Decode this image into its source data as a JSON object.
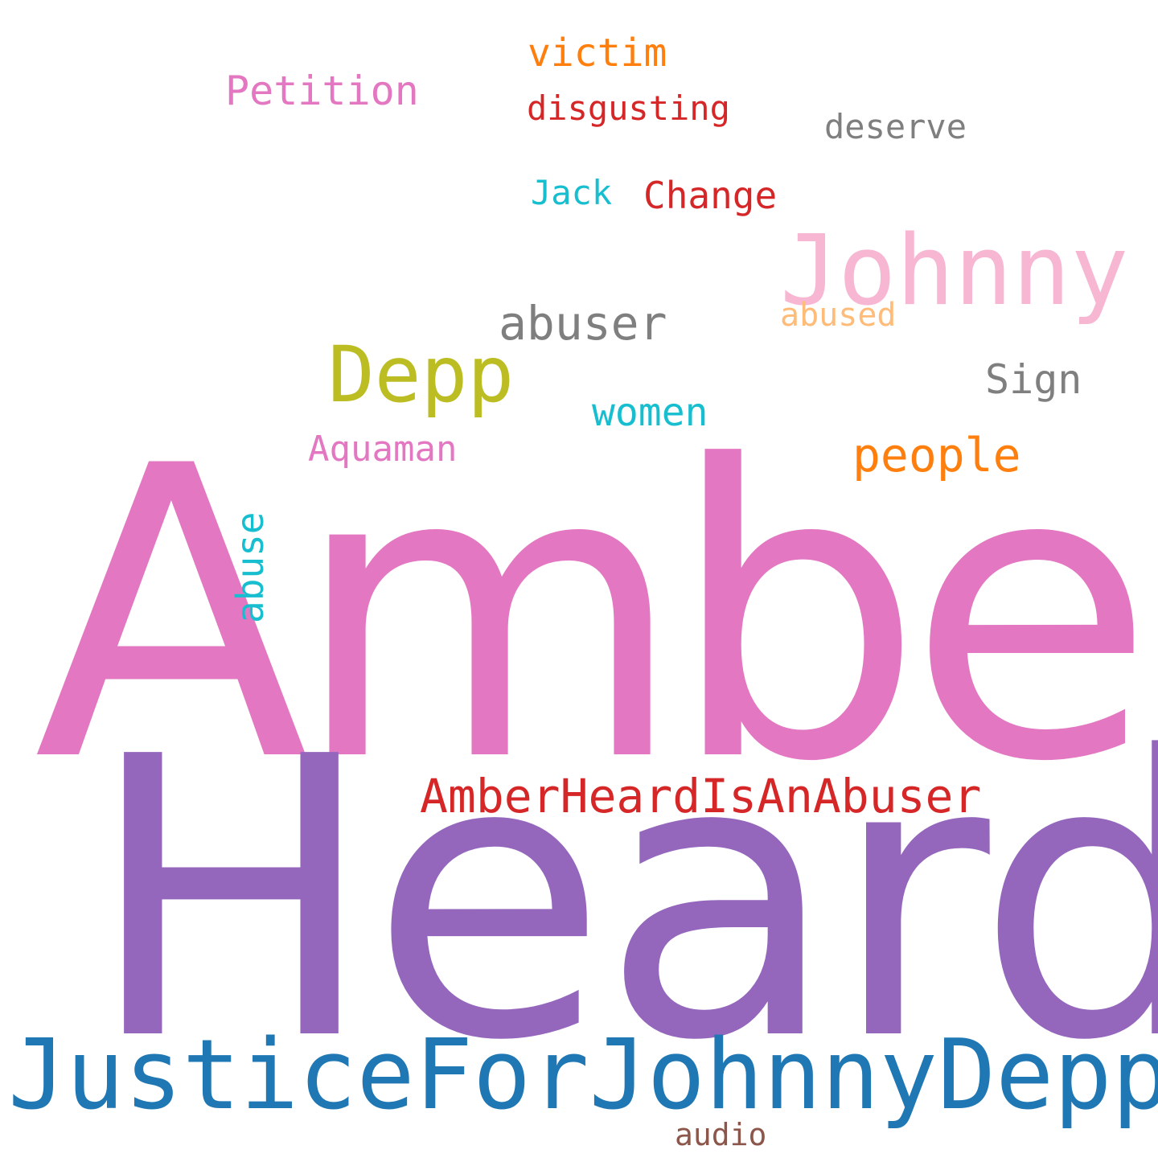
{
  "words": [
    {
      "id": "amber",
      "text": "Amber",
      "color": "#e377c2"
    },
    {
      "id": "heard",
      "text": "Heard",
      "color": "#9467bd"
    },
    {
      "id": "justice",
      "text": "JusticeForJohnnyDepp",
      "color": "#1f77b4"
    },
    {
      "id": "johnny",
      "text": "Johnny",
      "color": "#f7b6d2"
    },
    {
      "id": "depp",
      "text": "Depp",
      "color": "#bcbd22"
    },
    {
      "id": "amberheardisanabuser",
      "text": "AmberHeardIsAnAbuser",
      "color": "#d62728"
    },
    {
      "id": "abuser",
      "text": "abuser",
      "color": "#7f7f7f"
    },
    {
      "id": "people",
      "text": "people",
      "color": "#ff7f0e"
    },
    {
      "id": "petition",
      "text": "Petition",
      "color": "#e377c2"
    },
    {
      "id": "victim",
      "text": "victim",
      "color": "#ff7f0e"
    },
    {
      "id": "aquaman",
      "text": "Aquaman",
      "color": "#e377c2"
    },
    {
      "id": "change",
      "text": "Change",
      "color": "#d62728"
    },
    {
      "id": "women",
      "text": "women",
      "color": "#17becf"
    },
    {
      "id": "sign",
      "text": "Sign",
      "color": "#7f7f7f"
    },
    {
      "id": "disgusting",
      "text": "disgusting",
      "color": "#d62728"
    },
    {
      "id": "deserve",
      "text": "deserve",
      "color": "#7f7f7f"
    },
    {
      "id": "jack",
      "text": "Jack",
      "color": "#17becf"
    },
    {
      "id": "abused",
      "text": "abused",
      "color": "#ffbb78"
    },
    {
      "id": "abuse",
      "text": "abuse",
      "color": "#17becf"
    },
    {
      "id": "audio",
      "text": "audio",
      "color": "#8c564b"
    }
  ]
}
